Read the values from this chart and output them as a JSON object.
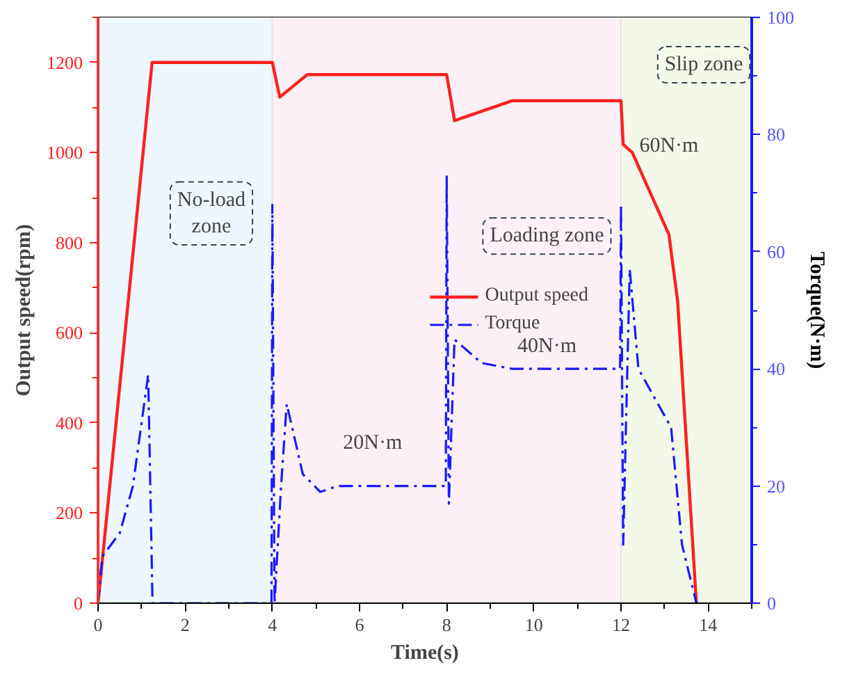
{
  "chart_data": {
    "type": "line",
    "xlabel": "Time(s)",
    "ylabel": "Output speed(rpm)",
    "y2label": "Torque(N·m)",
    "xlim": [
      0,
      15
    ],
    "xticks": [
      0,
      2,
      4,
      6,
      8,
      10,
      12,
      14
    ],
    "ylim": [
      0,
      1300
    ],
    "yticks": [
      0,
      200,
      400,
      600,
      800,
      1000,
      1200
    ],
    "y2lim": [
      0,
      100
    ],
    "y2ticks": [
      0,
      20,
      40,
      60,
      80,
      100
    ],
    "series": [
      {
        "name": "Output speed",
        "color": "#ff2020",
        "line_style": "solid",
        "x": [
          0,
          1.24,
          4.0,
          4.17,
          4.8,
          8.0,
          8.18,
          9.5,
          12.0,
          12.05,
          12.26,
          13.1,
          13.3,
          13.73
        ],
        "values": [
          0,
          1200,
          1200,
          1123,
          1173,
          1173,
          1071,
          1115,
          1115,
          1018,
          1000,
          818,
          670,
          0
        ]
      },
      {
        "name": "Torque",
        "color": "#1a1aff",
        "axis": "y2",
        "line_style": "dashed",
        "x": [
          0,
          0.1,
          0.5,
          0.8,
          1.15,
          1.25,
          1.5,
          3.98,
          4.0,
          4.05,
          4.2,
          4.33,
          4.7,
          5.1,
          5.5,
          7.98,
          8.0,
          8.05,
          8.18,
          8.8,
          9.5,
          11.98,
          12.0,
          12.05,
          12.2,
          12.4,
          13.15,
          13.4,
          13.73
        ],
        "values": [
          0,
          8,
          12,
          20,
          39,
          0,
          0,
          0,
          68,
          0,
          20,
          34,
          22,
          19,
          20,
          20,
          73,
          17,
          45,
          41,
          40,
          40,
          68,
          10,
          57,
          40,
          30,
          10,
          0
        ]
      }
    ],
    "bands": [
      {
        "axis": "x",
        "from": 0,
        "to": 4,
        "color": "#eef6ff"
      },
      {
        "axis": "x",
        "from": 4,
        "to": 12,
        "color": "#fdf0f6"
      },
      {
        "axis": "x",
        "from": 12,
        "to": 15,
        "color": "#f3f8e9"
      }
    ],
    "annotations": [
      "No-load\nzone",
      "Loading zone",
      "Slip zone",
      "20N·m",
      "40N·m",
      "60N·m"
    ],
    "legend": "right",
    "grid": false
  }
}
